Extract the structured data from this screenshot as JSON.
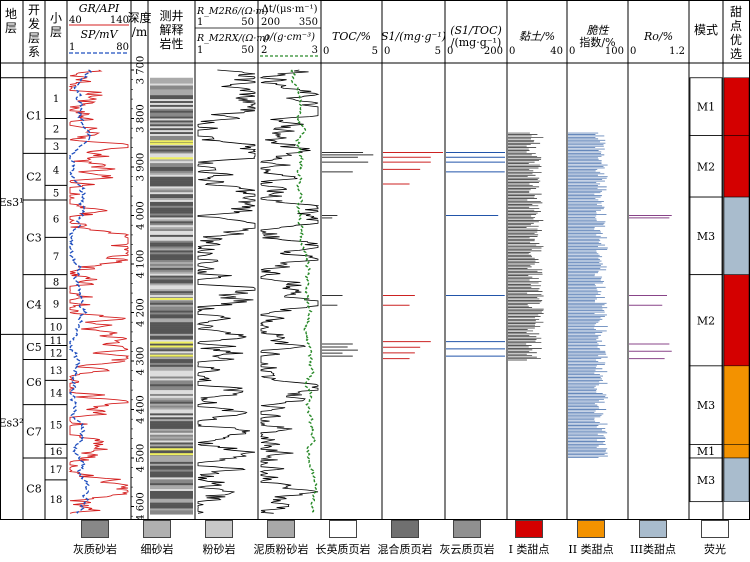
{
  "chart_data": {
    "type": "well-log composite",
    "headers": {
      "stratum": "地层",
      "dev_series": "开发层系",
      "sublayer": "小层",
      "curve_gr": "GR/API",
      "curve_gr_range": [
        "40",
        "140"
      ],
      "curve_sp": "SP/mV",
      "curve_sp_range": [
        "1",
        "80"
      ],
      "depth": "深度/m",
      "lith": "测井解释岩性",
      "res_top": "R_M2R6/(Ω·m)",
      "res_top_range": [
        "1",
        "50"
      ],
      "res_bottom": "R_M2RX/(Ω·m)",
      "res_bottom_range": [
        "1",
        "50"
      ],
      "dt": "Δt/(μs·m⁻¹)",
      "dt_range": [
        "200",
        "350"
      ],
      "rho": "ρ/(g·cm⁻³)",
      "rho_range": [
        "2",
        "3"
      ],
      "toc": "TOC/%",
      "toc_range": [
        "0",
        "5"
      ],
      "s1": "S1/(mg·g⁻¹)",
      "s1_range": [
        "0",
        "5"
      ],
      "s1toc": "(S1/TOC)/(mg·g⁻¹)",
      "s1toc_range": [
        "0",
        "200"
      ],
      "clay": "黏土/%",
      "clay_range": [
        "0",
        "40"
      ],
      "brittle": "脆性指数/%",
      "brittle_range": [
        "0",
        "100"
      ],
      "ro": "Ro/%",
      "ro_range": [
        "0",
        "1.2"
      ],
      "mode": "模式",
      "sweet": "甜点优选"
    },
    "depth_ticks": [
      3700,
      3800,
      3900,
      4000,
      4100,
      4200,
      4300,
      4400,
      4500,
      4600
    ],
    "strata": [
      {
        "name": "Es3¹",
        "from": 3716,
        "to": 4245
      },
      {
        "name": "Es3²",
        "from": 4245,
        "to": 4625
      }
    ],
    "dev_series": [
      {
        "name": "C1",
        "from": 3716,
        "to": 3872
      },
      {
        "name": "C2",
        "from": 3872,
        "to": 3968
      },
      {
        "name": "C3",
        "from": 3968,
        "to": 4122
      },
      {
        "name": "C4",
        "from": 4122,
        "to": 4245
      },
      {
        "name": "C5",
        "from": 4245,
        "to": 4297
      },
      {
        "name": "C6",
        "from": 4297,
        "to": 4390
      },
      {
        "name": "C7",
        "from": 4390,
        "to": 4500
      },
      {
        "name": "C8",
        "from": 4500,
        "to": 4625
      }
    ],
    "sublayers": [
      {
        "name": "1",
        "from": 3716,
        "to": 3800
      },
      {
        "name": "2",
        "from": 3800,
        "to": 3842
      },
      {
        "name": "3",
        "from": 3842,
        "to": 3872
      },
      {
        "name": "4",
        "from": 3872,
        "to": 3938
      },
      {
        "name": "5",
        "from": 3938,
        "to": 3968
      },
      {
        "name": "6",
        "from": 3968,
        "to": 4045
      },
      {
        "name": "7",
        "from": 4045,
        "to": 4122
      },
      {
        "name": "8",
        "from": 4122,
        "to": 4150
      },
      {
        "name": "9",
        "from": 4150,
        "to": 4212
      },
      {
        "name": "10",
        "from": 4212,
        "to": 4245
      },
      {
        "name": "11",
        "from": 4245,
        "to": 4268
      },
      {
        "name": "12",
        "from": 4268,
        "to": 4297
      },
      {
        "name": "13",
        "from": 4297,
        "to": 4340
      },
      {
        "name": "14",
        "from": 4340,
        "to": 4390
      },
      {
        "name": "15",
        "from": 4390,
        "to": 4472
      },
      {
        "name": "16",
        "from": 4472,
        "to": 4500
      },
      {
        "name": "17",
        "from": 4500,
        "to": 4545
      },
      {
        "name": "18",
        "from": 4545,
        "to": 4625
      }
    ],
    "modes": [
      {
        "name": "M1",
        "from": 3716,
        "to": 3835,
        "sweet": "I"
      },
      {
        "name": "M2",
        "from": 3835,
        "to": 3962,
        "sweet": "I"
      },
      {
        "name": "M3",
        "from": 3962,
        "to": 4122,
        "sweet": "III"
      },
      {
        "name": "M2",
        "from": 4122,
        "to": 4310,
        "sweet": "I"
      },
      {
        "name": "M3",
        "from": 4310,
        "to": 4472,
        "sweet": "II"
      },
      {
        "name": "M1",
        "from": 4472,
        "to": 4500,
        "sweet": "II"
      },
      {
        "name": "M3",
        "from": 4500,
        "to": 4590,
        "sweet": "III"
      }
    ],
    "sample_intervals": {
      "toc": [
        [
          3870,
          3880,
          0.8,
          1.0,
          0.7
        ],
        [
          3890,
          3910,
          0.9,
          0.6
        ],
        [
          4000,
          4005,
          0.3,
          0.2
        ],
        [
          4165,
          4185,
          0.4,
          0.3
        ],
        [
          4265,
          4290,
          0.6,
          0.5,
          0.7,
          0.4,
          0.6
        ]
      ],
      "s1": [
        [
          3870,
          3880,
          1.2,
          0.9
        ],
        [
          3890,
          3905,
          0.9,
          0.7
        ],
        [
          3935,
          3945,
          0.5
        ],
        [
          4165,
          4185,
          0.6,
          0.5
        ],
        [
          4260,
          4295,
          0.9,
          0.7,
          0.6,
          0.5
        ]
      ],
      "s1toc": [
        [
          3870,
          3880,
          70,
          55
        ],
        [
          3890,
          3910,
          60,
          45
        ],
        [
          4000,
          4005,
          40
        ],
        [
          4165,
          4185,
          45
        ],
        [
          4260,
          4290,
          100,
          60,
          50
        ]
      ],
      "ro": [
        [
          4000,
          4005,
          0.9,
          0.85
        ],
        [
          4165,
          4185,
          0.8,
          0.7
        ],
        [
          4265,
          4295,
          0.85,
          0.9,
          0.75
        ]
      ]
    },
    "clay_range_depth": [
      3830,
      4300
    ],
    "brittle_range_depth": [
      3830,
      4500
    ]
  },
  "legend": [
    {
      "label": "灰质砂岩",
      "color": "#888888"
    },
    {
      "label": "细砂岩",
      "color": "#b0b0b0"
    },
    {
      "label": "粉砂岩",
      "color": "#c8c8c8"
    },
    {
      "label": "泥质粉砂岩",
      "color": "#a8a8a8"
    },
    {
      "label": "长英质页岩",
      "color": "#ffffff"
    },
    {
      "label": "混合质页岩",
      "color": "#707070"
    },
    {
      "label": "灰云质页岩",
      "color": "#909090"
    },
    {
      "label": "I 类甜点",
      "color": "#d40000"
    },
    {
      "label": "II 类甜点",
      "color": "#f39200"
    },
    {
      "label": "III类甜点",
      "color": "#a9bccd"
    },
    {
      "label": "荧光",
      "color": "#ffffff"
    }
  ],
  "colors": {
    "gr": "#d41f1f",
    "sp": "#1f4fbf",
    "dt": "#000000",
    "rho": "#2a8a2a",
    "toc": "#333333",
    "s1": "#cc2222",
    "s1toc": "#2255aa",
    "clay": "#222222",
    "brittle": "#6688bb",
    "ro": "#884488"
  }
}
